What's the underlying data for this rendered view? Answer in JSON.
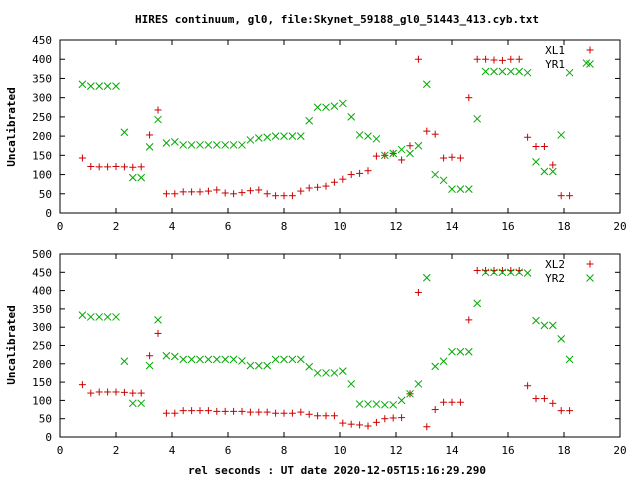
{
  "title": "HIRES continuum, gl0, file:Skynet_59188_gl0_51443_413.cyb.txt",
  "xlabel": "rel seconds : UT date 2020-12-05T15:16:29.290",
  "ylabel": "Uncalibrated",
  "colors": {
    "series1": "#cc0000",
    "series2": "#00aa00",
    "frame": "#000000"
  },
  "chart_data": [
    {
      "type": "scatter",
      "xlim": [
        0,
        20
      ],
      "ylim": [
        0,
        450
      ],
      "x_ticks": [
        0,
        2,
        4,
        6,
        8,
        10,
        12,
        14,
        16,
        18,
        20
      ],
      "y_ticks": [
        0,
        50,
        100,
        150,
        200,
        250,
        300,
        350,
        400,
        450
      ],
      "ylabel": "Uncalibrated",
      "legend_position": "top-right",
      "series": [
        {
          "name": "XL1",
          "marker": "plus",
          "x": [
            0.8,
            1.1,
            1.4,
            1.7,
            2.0,
            2.3,
            2.6,
            2.9,
            3.2,
            3.5,
            3.8,
            4.1,
            4.4,
            4.7,
            5.0,
            5.3,
            5.6,
            5.9,
            6.2,
            6.5,
            6.8,
            7.1,
            7.4,
            7.7,
            8.0,
            8.3,
            8.6,
            8.9,
            9.2,
            9.5,
            9.8,
            10.1,
            10.4,
            10.7,
            11.0,
            11.3,
            11.6,
            11.9,
            12.2,
            12.5,
            12.8,
            13.1,
            13.4,
            13.7,
            14.0,
            14.3,
            14.6,
            14.9,
            15.2,
            15.5,
            15.8,
            16.1,
            16.4,
            16.7,
            17.0,
            17.3,
            17.6,
            17.9,
            18.2
          ],
          "y": [
            143,
            121,
            120,
            120,
            121,
            120,
            119,
            120,
            203,
            268,
            50,
            50,
            55,
            55,
            55,
            57,
            60,
            52,
            50,
            53,
            58,
            60,
            50,
            45,
            45,
            45,
            57,
            65,
            67,
            70,
            80,
            88,
            100,
            103,
            110,
            148,
            150,
            155,
            138,
            175,
            400,
            213,
            205,
            143,
            145,
            143,
            300,
            400,
            400,
            398,
            397,
            400,
            400,
            197,
            173,
            173,
            125,
            45,
            45
          ]
        },
        {
          "name": "YR1",
          "marker": "cross",
          "x": [
            0.8,
            1.1,
            1.4,
            1.7,
            2.0,
            2.3,
            2.6,
            2.9,
            3.2,
            3.5,
            3.8,
            4.1,
            4.4,
            4.7,
            5.0,
            5.3,
            5.6,
            5.9,
            6.2,
            6.5,
            6.8,
            7.1,
            7.4,
            7.7,
            8.0,
            8.3,
            8.6,
            8.9,
            9.2,
            9.5,
            9.8,
            10.1,
            10.4,
            10.7,
            11.0,
            11.3,
            11.6,
            11.9,
            12.2,
            12.5,
            12.8,
            13.1,
            13.4,
            13.7,
            14.0,
            14.3,
            14.6,
            14.9,
            15.2,
            15.5,
            15.8,
            16.1,
            16.4,
            16.7,
            17.0,
            17.3,
            17.6,
            17.9,
            18.2,
            18.8
          ],
          "y": [
            335,
            330,
            330,
            330,
            330,
            210,
            92,
            92,
            172,
            243,
            182,
            185,
            177,
            177,
            177,
            177,
            177,
            177,
            177,
            177,
            190,
            195,
            197,
            200,
            200,
            200,
            200,
            240,
            275,
            275,
            278,
            285,
            250,
            203,
            200,
            193,
            150,
            155,
            165,
            155,
            175,
            335,
            100,
            85,
            62,
            62,
            62,
            245,
            368,
            368,
            368,
            368,
            368,
            365,
            133,
            108,
            108,
            203,
            365,
            390
          ]
        }
      ]
    },
    {
      "type": "scatter",
      "xlim": [
        0,
        20
      ],
      "ylim": [
        0,
        500
      ],
      "x_ticks": [
        0,
        2,
        4,
        6,
        8,
        10,
        12,
        14,
        16,
        18,
        20
      ],
      "y_ticks": [
        0,
        50,
        100,
        150,
        200,
        250,
        300,
        350,
        400,
        450,
        500
      ],
      "ylabel": "Uncalibrated",
      "xlabel": "rel seconds : UT date 2020-12-05T15:16:29.290",
      "legend_position": "top-right",
      "series": [
        {
          "name": "XL2",
          "marker": "plus",
          "x": [
            0.8,
            1.1,
            1.4,
            1.7,
            2.0,
            2.3,
            2.6,
            2.9,
            3.2,
            3.5,
            3.8,
            4.1,
            4.4,
            4.7,
            5.0,
            5.3,
            5.6,
            5.9,
            6.2,
            6.5,
            6.8,
            7.1,
            7.4,
            7.7,
            8.0,
            8.3,
            8.6,
            8.9,
            9.2,
            9.5,
            9.8,
            10.1,
            10.4,
            10.7,
            11.0,
            11.3,
            11.6,
            11.9,
            12.2,
            12.5,
            12.8,
            13.1,
            13.4,
            13.7,
            14.0,
            14.3,
            14.6,
            14.9,
            15.2,
            15.5,
            15.8,
            16.1,
            16.4,
            16.7,
            17.0,
            17.3,
            17.6,
            17.9,
            18.2
          ],
          "y": [
            143,
            120,
            123,
            123,
            123,
            122,
            120,
            120,
            222,
            283,
            65,
            65,
            72,
            72,
            72,
            72,
            70,
            70,
            70,
            70,
            68,
            68,
            68,
            65,
            65,
            65,
            68,
            62,
            58,
            58,
            58,
            38,
            35,
            33,
            30,
            40,
            50,
            52,
            53,
            118,
            395,
            28,
            75,
            95,
            95,
            95,
            320,
            455,
            455,
            455,
            455,
            455,
            455,
            140,
            105,
            105,
            92,
            72,
            72
          ]
        },
        {
          "name": "YR2",
          "marker": "cross",
          "x": [
            0.8,
            1.1,
            1.4,
            1.7,
            2.0,
            2.3,
            2.6,
            2.9,
            3.2,
            3.5,
            3.8,
            4.1,
            4.4,
            4.7,
            5.0,
            5.3,
            5.6,
            5.9,
            6.2,
            6.5,
            6.8,
            7.1,
            7.4,
            7.7,
            8.0,
            8.3,
            8.6,
            8.9,
            9.2,
            9.5,
            9.8,
            10.1,
            10.4,
            10.7,
            11.0,
            11.3,
            11.6,
            11.9,
            12.2,
            12.5,
            12.8,
            13.1,
            13.4,
            13.7,
            14.0,
            14.3,
            14.6,
            14.9,
            15.2,
            15.5,
            15.8,
            16.1,
            16.4,
            16.7,
            17.0,
            17.3,
            17.6,
            17.9,
            18.2
          ],
          "y": [
            333,
            328,
            328,
            328,
            328,
            207,
            92,
            92,
            195,
            320,
            222,
            220,
            212,
            212,
            212,
            212,
            212,
            212,
            212,
            208,
            195,
            195,
            195,
            212,
            212,
            212,
            212,
            192,
            175,
            175,
            175,
            180,
            145,
            90,
            90,
            90,
            88,
            88,
            100,
            118,
            145,
            435,
            193,
            207,
            233,
            233,
            233,
            365,
            450,
            450,
            450,
            450,
            450,
            448,
            318,
            305,
            305,
            268,
            212
          ]
        }
      ]
    }
  ]
}
